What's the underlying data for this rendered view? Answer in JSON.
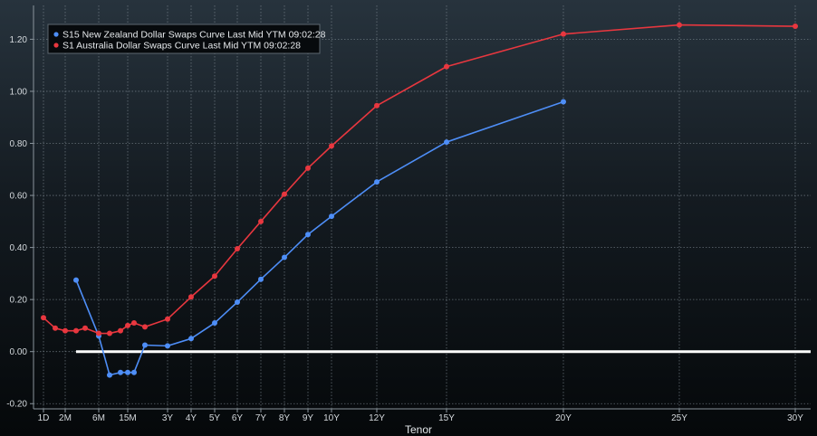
{
  "chart_data": {
    "type": "line",
    "xlabel": "Tenor",
    "ylabel": "",
    "ylim": [
      -0.22,
      1.33
    ],
    "grid": true,
    "legend_position": "top-left",
    "yticks": [
      -0.2,
      0.0,
      0.2,
      0.4,
      0.6,
      0.8,
      1.0,
      1.2
    ],
    "ytick_labels": [
      "-0.20",
      "0.00",
      "0.20",
      "0.40",
      "0.60",
      "0.80",
      "1.00",
      "1.20"
    ],
    "xticks": [
      "1D",
      "2M",
      "6M",
      "15M",
      "3Y",
      "4Y",
      "5Y",
      "6Y",
      "7Y",
      "8Y",
      "9Y",
      "10Y",
      "12Y",
      "15Y",
      "20Y",
      "25Y",
      "30Y"
    ],
    "reference_line": {
      "y": 0.0,
      "from": "3M",
      "color": "#ffffff"
    },
    "series": [
      {
        "name": "S15 New Zealand Dollar Swaps Curve Last Mid YTM 09:02:28",
        "color": "#4e8ef7",
        "x": [
          "3M",
          "6M",
          "7M",
          "12M",
          "15M",
          "18M",
          "2Y",
          "3Y",
          "4Y",
          "5Y",
          "6Y",
          "7Y",
          "8Y",
          "9Y",
          "10Y",
          "12Y",
          "15Y",
          "20Y"
        ],
        "values": [
          0.275,
          0.06,
          -0.09,
          -0.08,
          -0.08,
          -0.08,
          0.025,
          0.022,
          0.05,
          0.11,
          0.19,
          0.278,
          0.362,
          0.45,
          0.52,
          0.652,
          0.805,
          0.96
        ]
      },
      {
        "name": "S1 Australia Dollar Swaps Curve Last Mid YTM 09:02:28",
        "color": "#e8373f",
        "x": [
          "1D",
          "1M",
          "2M",
          "3M",
          "4M",
          "6M",
          "9M",
          "12M",
          "15M",
          "18M",
          "2Y",
          "3Y",
          "4Y",
          "5Y",
          "6Y",
          "7Y",
          "8Y",
          "9Y",
          "10Y",
          "12Y",
          "15Y",
          "20Y",
          "25Y",
          "30Y"
        ],
        "values": [
          0.13,
          0.09,
          0.08,
          0.08,
          0.09,
          0.07,
          0.07,
          0.08,
          0.1,
          0.11,
          0.095,
          0.125,
          0.21,
          0.29,
          0.395,
          0.5,
          0.605,
          0.705,
          0.79,
          0.945,
          1.095,
          1.22,
          1.255,
          1.25
        ]
      }
    ]
  }
}
